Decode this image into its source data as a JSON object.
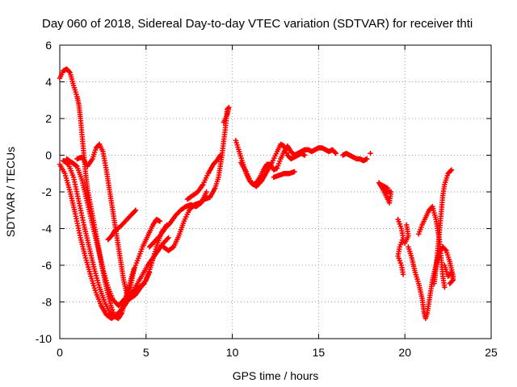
{
  "chart_data": {
    "type": "scatter",
    "title": "Day 060 of 2018, Sidereal Day-to-day VTEC variation (SDTVAR) for receiver thti",
    "xlabel": "GPS time / hours",
    "ylabel": "SDTVAR / TECUs",
    "xlim": [
      0,
      25
    ],
    "ylim": [
      -10,
      6
    ],
    "xticks": [
      0,
      5,
      10,
      15,
      20,
      25
    ],
    "yticks": [
      -10,
      -8,
      -6,
      -4,
      -2,
      0,
      2,
      4,
      6
    ],
    "grid": true,
    "marker": "+",
    "color": "#ff0000",
    "series": [
      {
        "segments": [
          [
            [
              0.0,
              4.2
            ],
            [
              0.2,
              4.6
            ],
            [
              0.4,
              4.7
            ],
            [
              0.6,
              4.5
            ],
            [
              0.8,
              3.8
            ],
            [
              1.0,
              3.2
            ],
            [
              1.1,
              2.8
            ],
            [
              1.2,
              2.0
            ],
            [
              1.3,
              1.0
            ],
            [
              1.4,
              0.0
            ],
            [
              1.5,
              -1.0
            ],
            [
              1.6,
              -1.8
            ],
            [
              1.8,
              -2.8
            ],
            [
              2.0,
              -3.8
            ],
            [
              2.2,
              -4.8
            ],
            [
              2.4,
              -5.8
            ],
            [
              2.6,
              -6.8
            ],
            [
              2.8,
              -7.6
            ],
            [
              3.0,
              -8.3
            ],
            [
              3.2,
              -8.8
            ],
            [
              3.4,
              -8.9
            ],
            [
              3.6,
              -8.6
            ],
            [
              3.8,
              -7.8
            ],
            [
              4.0,
              -7.2
            ],
            [
              4.2,
              -6.5
            ],
            [
              4.4,
              -6.0
            ],
            [
              4.6,
              -5.5
            ],
            [
              4.8,
              -5.0
            ],
            [
              5.0,
              -4.6
            ],
            [
              5.2,
              -4.2
            ],
            [
              5.4,
              -3.8
            ],
            [
              5.6,
              -3.5
            ],
            [
              5.8,
              -3.6
            ]
          ],
          [
            [
              0.0,
              -0.5
            ],
            [
              0.3,
              -1.0
            ],
            [
              0.6,
              -2.0
            ],
            [
              0.9,
              -3.2
            ],
            [
              1.2,
              -4.5
            ],
            [
              1.5,
              -5.6
            ],
            [
              1.8,
              -6.6
            ],
            [
              2.1,
              -7.5
            ],
            [
              2.4,
              -8.2
            ],
            [
              2.7,
              -8.7
            ],
            [
              3.0,
              -8.9
            ],
            [
              3.3,
              -8.7
            ],
            [
              3.6,
              -8.4
            ],
            [
              3.9,
              -8.0
            ],
            [
              4.2,
              -7.5
            ],
            [
              4.5,
              -7.0
            ],
            [
              4.8,
              -6.5
            ],
            [
              5.1,
              -6.0
            ],
            [
              5.4,
              -5.6
            ],
            [
              5.7,
              -5.2
            ],
            [
              6.0,
              -4.8
            ],
            [
              6.3,
              -4.5
            ]
          ],
          [
            [
              0.2,
              -0.3
            ],
            [
              0.5,
              -0.5
            ],
            [
              0.8,
              -1.2
            ],
            [
              1.1,
              -2.5
            ],
            [
              1.4,
              -3.8
            ],
            [
              1.7,
              -5.0
            ],
            [
              2.0,
              -6.2
            ],
            [
              2.3,
              -7.2
            ],
            [
              2.6,
              -8.0
            ],
            [
              2.9,
              -8.6
            ],
            [
              3.2,
              -8.8
            ],
            [
              3.5,
              -8.5
            ],
            [
              3.8,
              -8.0
            ],
            [
              4.1,
              -7.8
            ],
            [
              4.4,
              -7.6
            ],
            [
              4.7,
              -7.2
            ],
            [
              5.0,
              -6.8
            ],
            [
              5.3,
              -6.0
            ],
            [
              5.6,
              -5.0
            ],
            [
              5.9,
              -4.2
            ],
            [
              6.2,
              -3.8
            ]
          ],
          [
            [
              0.4,
              -0.2
            ],
            [
              0.7,
              -0.4
            ],
            [
              1.0,
              -0.6
            ],
            [
              1.3,
              -1.4
            ],
            [
              1.6,
              -2.6
            ],
            [
              1.9,
              -3.8
            ],
            [
              2.2,
              -5.0
            ],
            [
              2.5,
              -6.2
            ],
            [
              2.8,
              -7.2
            ],
            [
              3.1,
              -7.9
            ],
            [
              3.4,
              -8.2
            ],
            [
              3.7,
              -7.9
            ],
            [
              4.0,
              -7.6
            ],
            [
              4.3,
              -7.4
            ],
            [
              4.6,
              -7.2
            ],
            [
              4.9,
              -7.0
            ],
            [
              5.2,
              -6.4
            ]
          ],
          [
            [
              1.0,
              -0.2
            ],
            [
              1.3,
              -0.1
            ],
            [
              1.6,
              -0.6
            ],
            [
              1.9,
              -0.2
            ],
            [
              2.1,
              0.4
            ],
            [
              2.3,
              0.6
            ],
            [
              2.5,
              0.2
            ],
            [
              2.7,
              -0.8
            ],
            [
              2.9,
              -2.0
            ],
            [
              3.1,
              -3.2
            ],
            [
              3.3,
              -4.4
            ],
            [
              3.5,
              -5.6
            ],
            [
              3.7,
              -6.8
            ],
            [
              3.9,
              -7.6
            ],
            [
              4.1,
              -7.2
            ],
            [
              4.3,
              -6.2
            ]
          ],
          [
            [
              2.8,
              -4.6
            ],
            [
              3.0,
              -4.4
            ],
            [
              3.2,
              -4.1
            ],
            [
              3.5,
              -3.9
            ],
            [
              3.8,
              -3.6
            ],
            [
              4.1,
              -3.3
            ],
            [
              4.4,
              -3.0
            ]
          ],
          [
            [
              5.2,
              -5.0
            ],
            [
              5.5,
              -4.7
            ],
            [
              5.8,
              -4.4
            ],
            [
              6.1,
              -4.0
            ],
            [
              6.4,
              -3.7
            ],
            [
              6.7,
              -3.3
            ],
            [
              7.0,
              -3.0
            ],
            [
              7.3,
              -2.8
            ],
            [
              7.6,
              -2.7
            ],
            [
              7.9,
              -2.8
            ],
            [
              8.2,
              -2.6
            ],
            [
              8.5,
              -2.0
            ]
          ],
          [
            [
              6.0,
              -5.0
            ],
            [
              6.3,
              -5.2
            ],
            [
              6.6,
              -5.0
            ],
            [
              6.9,
              -4.4
            ],
            [
              7.2,
              -3.6
            ],
            [
              7.5,
              -3.0
            ],
            [
              7.8,
              -2.7
            ],
            [
              8.1,
              -2.6
            ],
            [
              8.4,
              -2.4
            ],
            [
              8.7,
              -2.3
            ],
            [
              9.0,
              -1.8
            ],
            [
              9.2,
              -1.2
            ],
            [
              9.4,
              0.0
            ],
            [
              9.6,
              1.5
            ],
            [
              9.7,
              2.5
            ],
            [
              9.8,
              2.6
            ],
            [
              9.7,
              2.2
            ],
            [
              9.5,
              1.8
            ]
          ],
          [
            [
              7.4,
              -2.4
            ],
            [
              7.7,
              -2.2
            ],
            [
              8.0,
              -2.0
            ],
            [
              8.3,
              -1.6
            ],
            [
              8.6,
              -1.0
            ],
            [
              8.9,
              -0.5
            ],
            [
              9.1,
              -0.3
            ],
            [
              9.3,
              0.0
            ]
          ],
          [
            [
              10.2,
              0.8
            ],
            [
              10.4,
              0.2
            ],
            [
              10.6,
              -0.4
            ],
            [
              10.8,
              -1.0
            ],
            [
              11.0,
              -1.4
            ],
            [
              11.2,
              -1.6
            ],
            [
              11.4,
              -1.5
            ],
            [
              11.6,
              -1.2
            ],
            [
              11.8,
              -0.8
            ],
            [
              12.0,
              -0.5
            ],
            [
              12.2,
              -0.5
            ],
            [
              12.4,
              -0.8
            ],
            [
              12.6,
              -0.7
            ],
            [
              12.8,
              -0.2
            ],
            [
              13.0,
              0.2
            ],
            [
              13.2,
              0.5
            ],
            [
              13.4,
              0.2
            ],
            [
              13.6,
              0.0
            ],
            [
              13.8,
              0.1
            ],
            [
              14.0,
              0.2
            ],
            [
              14.2,
              0.3
            ],
            [
              14.4,
              0.3
            ],
            [
              14.6,
              0.2
            ],
            [
              14.8,
              0.3
            ],
            [
              15.0,
              0.4
            ],
            [
              15.2,
              0.4
            ],
            [
              15.4,
              0.3
            ],
            [
              15.6,
              0.2
            ],
            [
              15.8,
              0.3
            ],
            [
              16.0,
              0.1
            ]
          ],
          [
            [
              10.5,
              -0.4
            ],
            [
              10.8,
              -0.9
            ],
            [
              11.1,
              -1.5
            ],
            [
              11.4,
              -1.7
            ],
            [
              11.7,
              -1.4
            ],
            [
              12.0,
              -0.9
            ],
            [
              12.3,
              -0.4
            ],
            [
              12.6,
              0.2
            ],
            [
              12.8,
              0.6
            ],
            [
              13.0,
              0.5
            ],
            [
              13.2,
              0.0
            ],
            [
              13.4,
              -0.2
            ],
            [
              13.6,
              -0.1
            ],
            [
              13.8,
              0.0
            ],
            [
              14.0,
              0.1
            ],
            [
              14.2,
              0.0
            ]
          ],
          [
            [
              12.4,
              -1.2
            ],
            [
              12.7,
              -1.1
            ],
            [
              13.0,
              -1.0
            ],
            [
              13.3,
              -1.0
            ],
            [
              13.6,
              -0.9
            ]
          ],
          [
            [
              16.4,
              0.0
            ],
            [
              16.6,
              0.1
            ],
            [
              16.8,
              0.0
            ],
            [
              17.0,
              -0.1
            ],
            [
              17.2,
              -0.2
            ],
            [
              17.4,
              -0.2
            ],
            [
              17.6,
              -0.3
            ],
            [
              17.8,
              -0.2
            ]
          ],
          [
            [
              18.0,
              0.1
            ]
          ],
          [
            [
              18.5,
              -1.5
            ],
            [
              18.7,
              -1.8
            ],
            [
              18.9,
              -2.2
            ],
            [
              19.1,
              -2.6
            ],
            [
              19.2,
              -2.0
            ],
            [
              18.8,
              -2.0
            ],
            [
              18.6,
              -1.6
            ],
            [
              19.0,
              -1.8
            ]
          ],
          [
            [
              19.6,
              -3.5
            ],
            [
              19.8,
              -4.0
            ],
            [
              19.9,
              -4.5
            ],
            [
              19.7,
              -5.0
            ],
            [
              19.6,
              -5.5
            ],
            [
              19.8,
              -6.0
            ],
            [
              19.9,
              -6.5
            ]
          ],
          [
            [
              20.1,
              -3.8
            ],
            [
              20.2,
              -4.4
            ],
            [
              20.0,
              -4.8
            ]
          ],
          [
            [
              20.2,
              -5.0
            ],
            [
              20.4,
              -5.6
            ],
            [
              20.6,
              -6.4
            ],
            [
              20.8,
              -7.0
            ],
            [
              21.0,
              -7.8
            ],
            [
              21.1,
              -8.5
            ],
            [
              21.2,
              -8.9
            ],
            [
              21.3,
              -8.6
            ],
            [
              21.4,
              -8.0
            ],
            [
              21.5,
              -7.4
            ],
            [
              21.6,
              -6.8
            ],
            [
              21.8,
              -6.0
            ],
            [
              22.0,
              -5.3
            ],
            [
              22.2,
              -5.0
            ],
            [
              22.4,
              -5.2
            ],
            [
              22.6,
              -5.8
            ],
            [
              22.8,
              -6.6
            ]
          ],
          [
            [
              20.8,
              -4.3
            ],
            [
              21.0,
              -3.8
            ],
            [
              21.2,
              -3.4
            ],
            [
              21.4,
              -3.0
            ],
            [
              21.6,
              -2.8
            ],
            [
              21.8,
              -3.5
            ],
            [
              22.0,
              -4.6
            ],
            [
              22.1,
              -5.6
            ],
            [
              22.2,
              -6.6
            ],
            [
              22.3,
              -7.2
            ]
          ],
          [
            [
              21.7,
              -7.0
            ],
            [
              21.8,
              -6.2
            ],
            [
              21.9,
              -5.2
            ],
            [
              22.0,
              -4.2
            ],
            [
              22.1,
              -3.2
            ],
            [
              22.2,
              -2.2
            ],
            [
              22.3,
              -1.6
            ],
            [
              22.5,
              -1.0
            ],
            [
              22.7,
              -0.8
            ]
          ],
          [
            [
              22.3,
              -6.0
            ],
            [
              22.5,
              -6.6
            ],
            [
              22.7,
              -6.4
            ],
            [
              22.8,
              -6.8
            ],
            [
              22.6,
              -7.0
            ]
          ]
        ]
      }
    ]
  }
}
